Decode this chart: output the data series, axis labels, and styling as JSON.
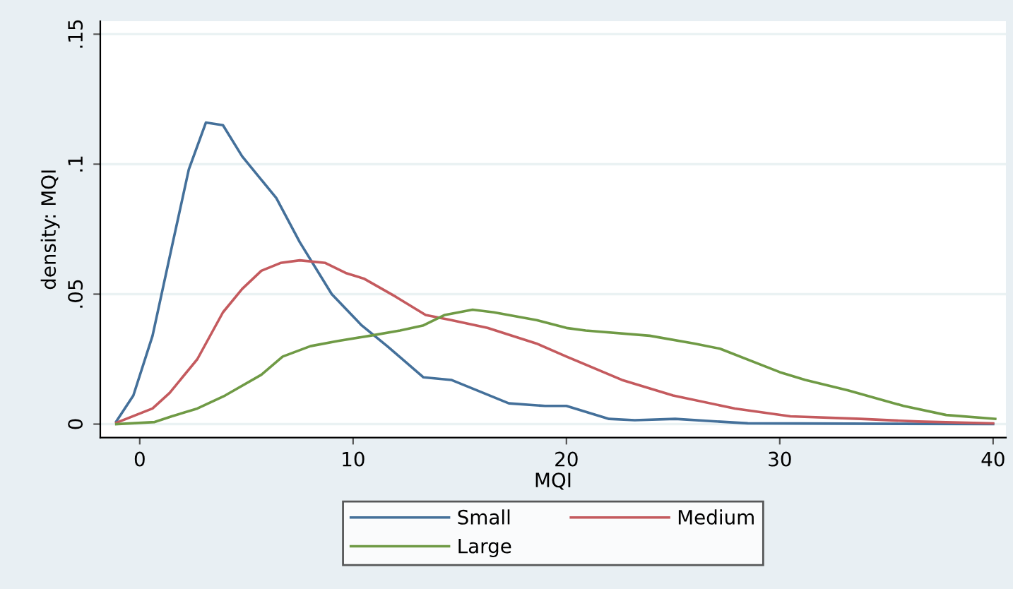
{
  "chart_data": {
    "type": "line",
    "xlabel": "MQI",
    "ylabel": "density: MQI",
    "xlim": [
      -1.85,
      40.6
    ],
    "ylim": [
      -0.0052,
      0.155
    ],
    "xticks": [
      0,
      10,
      20,
      30,
      40
    ],
    "yticks": [
      {
        "value": 0,
        "label": "0"
      },
      {
        "value": 0.05,
        "label": ".05"
      },
      {
        "value": 0.1,
        "label": ".1"
      },
      {
        "value": 0.15,
        "label": ".15"
      }
    ],
    "grid": "y",
    "legend": "bottom",
    "line_style": "solid",
    "marker": "none",
    "series": [
      {
        "name": "Small",
        "color": "#44709a",
        "x": [
          -1.1,
          -0.3,
          0.6,
          1.5,
          2.3,
          3.1,
          3.9,
          4.8,
          5.7,
          6.4,
          7.5,
          9.0,
          10.4,
          11.6,
          13.3,
          14.6,
          15.8,
          17.3,
          19,
          20,
          22,
          23.2,
          25.1,
          28.5,
          40
        ],
        "values": [
          0.001,
          0.011,
          0.034,
          0.068,
          0.098,
          0.116,
          0.115,
          0.103,
          0.094,
          0.087,
          0.07,
          0.05,
          0.038,
          0.03,
          0.018,
          0.017,
          0.013,
          0.008,
          0.007,
          0.007,
          0.002,
          0.0015,
          0.002,
          0.0003,
          0
        ]
      },
      {
        "name": "Medium",
        "color": "#c45a5e",
        "x": [
          -1.1,
          0.6,
          1.4,
          2.7,
          3.9,
          4.8,
          5.7,
          6.6,
          7.5,
          8.7,
          9.7,
          10.5,
          12,
          13.4,
          14.6,
          16.3,
          18.6,
          20,
          22.6,
          25,
          27.9,
          30.5,
          33.8,
          36.5,
          40
        ],
        "values": [
          0.0005,
          0.006,
          0.012,
          0.025,
          0.043,
          0.052,
          0.059,
          0.062,
          0.063,
          0.062,
          0.058,
          0.056,
          0.049,
          0.042,
          0.04,
          0.037,
          0.031,
          0.026,
          0.017,
          0.011,
          0.006,
          0.003,
          0.002,
          0.001,
          0.0003
        ]
      },
      {
        "name": "Large",
        "color": "#6f9a45",
        "x": [
          -1.1,
          0.7,
          1.5,
          2.7,
          4,
          5.7,
          6.7,
          8,
          9.3,
          10.8,
          12.2,
          13.3,
          14.3,
          15.6,
          16.6,
          18.6,
          20,
          20.9,
          23.9,
          26,
          27.2,
          30,
          31.2,
          33.2,
          35.8,
          37.8,
          40.1
        ],
        "values": [
          0,
          0.0008,
          0.003,
          0.006,
          0.011,
          0.019,
          0.026,
          0.03,
          0.032,
          0.034,
          0.036,
          0.038,
          0.042,
          0.044,
          0.043,
          0.04,
          0.037,
          0.036,
          0.034,
          0.031,
          0.029,
          0.02,
          0.017,
          0.013,
          0.007,
          0.0035,
          0.002
        ]
      }
    ]
  }
}
